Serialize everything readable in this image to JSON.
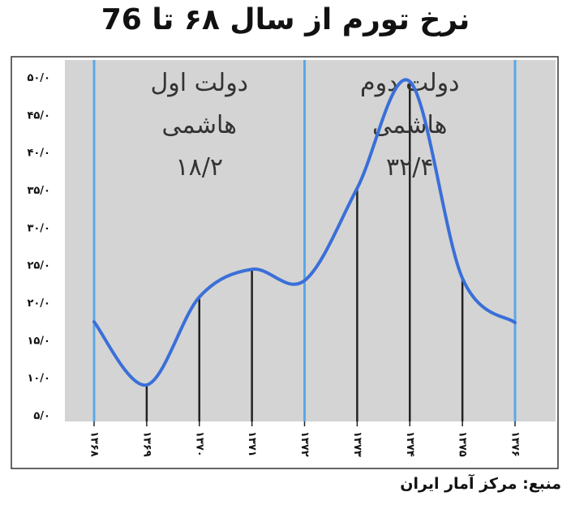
{
  "header": {
    "title": "نرخ تورم از سال ۶۸ تا 76"
  },
  "footer": {
    "source": "منبع: مرکز آمار ایران"
  },
  "colors": {
    "curve": "#3a6fd8",
    "period_line": "#5aa7e8",
    "plot_bg": "#d4d4d4",
    "bar": "#222222"
  },
  "chart_data": {
    "type": "line",
    "title": "نرخ تورم از سال ۶۸ تا 76",
    "xlabel": "",
    "ylabel": "",
    "categories": [
      "۱۳۶۸",
      "۱۳۶۹",
      "۱۳۷۰",
      "۱۳۷۱",
      "۱۳۷۲",
      "۱۳۷۳",
      "۱۳۷۴",
      "۱۳۷۵",
      "۱۳۷۶"
    ],
    "x": [
      1368,
      1369,
      1370,
      1371,
      1372,
      1373,
      1374,
      1375,
      1376
    ],
    "values": [
      17.4,
      9.0,
      20.7,
      24.4,
      22.9,
      35.2,
      49.4,
      23.2,
      17.3
    ],
    "y_ticks": [
      "۵/۰",
      "۱۰/۰",
      "۱۵/۰",
      "۲۰/۰",
      "۲۵/۰",
      "۳۰/۰",
      "۳۵/۰",
      "۴۰/۰",
      "۴۵/۰",
      "۵۰/۰"
    ],
    "y_tick_values": [
      5,
      10,
      15,
      20,
      25,
      30,
      35,
      40,
      45,
      50
    ],
    "ylim": [
      5,
      50
    ],
    "grid": false,
    "legend": "none",
    "period_dividers": [
      1368,
      1372,
      1376
    ],
    "annotations": [
      {
        "lines": [
          "دولت اول",
          "هاشمی",
          "۱۸/۲"
        ],
        "between": [
          1368,
          1372
        ]
      },
      {
        "lines": [
          "دولت دوم",
          "هاشمی",
          "۳۲/۴"
        ],
        "between": [
          1372,
          1376
        ]
      }
    ]
  }
}
